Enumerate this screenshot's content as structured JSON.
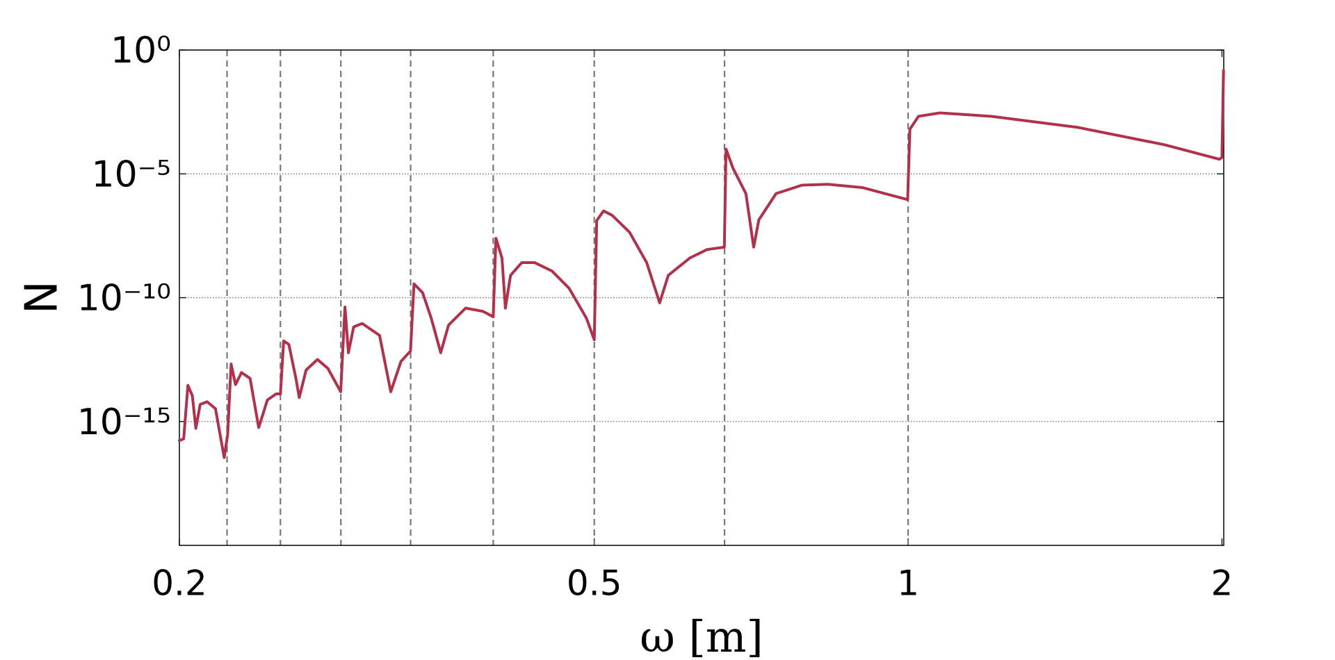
{
  "chart_data": {
    "type": "line",
    "x_label": "ω [m]",
    "y_label": "N",
    "xscale": "log",
    "yscale": "log",
    "color": "#b3304a",
    "grid": true,
    "xlim": [
      0.2,
      2.008
    ],
    "ylim": [
      1e-20,
      1
    ],
    "xticks": [
      0.2,
      0.5,
      1,
      2
    ],
    "yticks": [
      {
        "value": 1,
        "label": "10⁰"
      },
      {
        "value": 1e-05,
        "label": "10⁻⁵"
      },
      {
        "value": 1e-10,
        "label": "10⁻¹⁰"
      },
      {
        "value": 1e-15,
        "label": "10⁻¹⁵"
      }
    ],
    "vlines": [
      0.2222,
      0.25,
      0.2857,
      0.3333,
      0.4,
      0.5,
      0.6667,
      1
    ],
    "x": [
      0.2,
      0.2019,
      0.2038,
      0.2058,
      0.2074,
      0.2094,
      0.2126,
      0.2166,
      0.2208,
      0.2225,
      0.2242,
      0.2264,
      0.2294,
      0.2338,
      0.2383,
      0.2429,
      0.2476,
      0.25,
      0.2518,
      0.2547,
      0.2587,
      0.2606,
      0.2646,
      0.2713,
      0.2776,
      0.2856,
      0.2883,
      0.2905,
      0.2939,
      0.2995,
      0.3112,
      0.319,
      0.3263,
      0.3332,
      0.3358,
      0.3422,
      0.3488,
      0.3562,
      0.3624,
      0.3764,
      0.3911,
      0.4,
      0.4024,
      0.4078,
      0.4109,
      0.4156,
      0.426,
      0.4384,
      0.4554,
      0.473,
      0.4914,
      0.5,
      0.5027,
      0.5104,
      0.5203,
      0.5405,
      0.5614,
      0.5777,
      0.5888,
      0.6175,
      0.6415,
      0.6664,
      0.6689,
      0.6792,
      0.6989,
      0.711,
      0.7192,
      0.7471,
      0.7911,
      0.8376,
      0.9037,
      0.999,
      1.004,
      1.0231,
      1.0729,
      1.2028,
      1.4556,
      1.7613,
      1.9886,
      2.0,
      2.007
    ],
    "values": [
      1.7e-16,
      2e-16,
      2.9e-14,
      1.1e-14,
      5.3e-16,
      4.9e-15,
      6.3e-15,
      3.3e-15,
      3.5e-17,
      3e-16,
      2.1e-13,
      3.1e-14,
      9.5e-14,
      5.5e-14,
      5.7e-16,
      7.4e-15,
      1.3e-14,
      1.3e-14,
      1.8e-12,
      1.3e-12,
      5.5e-14,
      9.3e-15,
      1.2e-13,
      3.2e-13,
      1.4e-13,
      1.6e-14,
      4.2e-11,
      6e-13,
      6.6e-12,
      9.1e-12,
      3e-12,
      1.6e-14,
      2.7e-13,
      7e-13,
      3.6e-10,
      1.6e-10,
      1.5e-11,
      6e-13,
      7.8e-12,
      3.8e-11,
      2.8e-11,
      1.7e-11,
      2.5e-08,
      4e-09,
      3.8e-11,
      8e-10,
      2.6e-09,
      2.6e-09,
      1.2e-09,
      2.4e-10,
      1.5e-11,
      2e-12,
      1.3e-07,
      3.2e-07,
      2.1e-07,
      4.4e-08,
      2.6e-09,
      6.2e-11,
      8e-10,
      4e-09,
      8.8e-09,
      1.1e-08,
      0.0001,
      1.7e-05,
      1.6e-06,
      1.1e-08,
      1.4e-07,
      1.6e-06,
      3.5e-06,
      3.8e-06,
      2.8e-06,
      9.1e-07,
      0.00064,
      0.0021,
      0.0029,
      0.0021,
      0.00075,
      0.00015,
      3.9e-05,
      4.6e-05,
      0.15
    ]
  }
}
